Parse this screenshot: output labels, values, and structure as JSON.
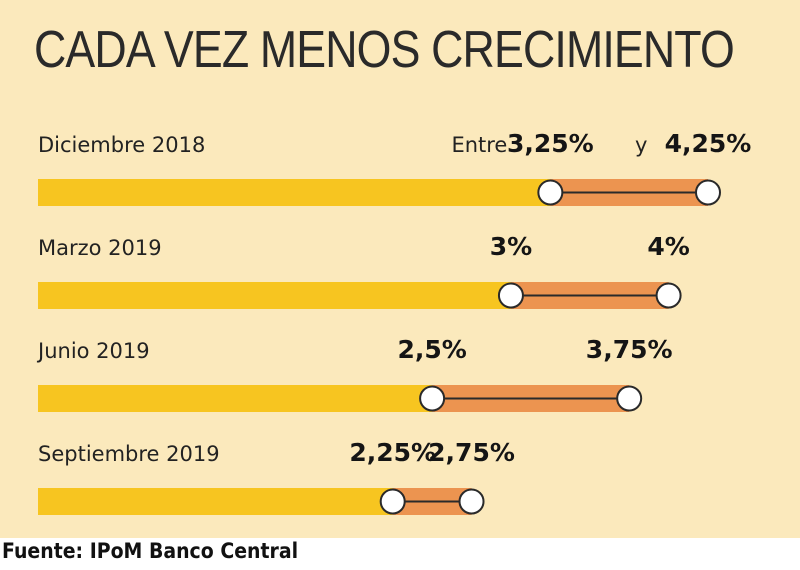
{
  "title": "CADA VEZ MENOS CRECIMIENTO",
  "source": "Fuente: IPoM Banco Central",
  "colors": {
    "background": "#fbe9bc",
    "base_bar": "#f7c520",
    "range_bar": "#ec9450",
    "marker": "#ffffff",
    "text": "#222222"
  },
  "chart_data": {
    "type": "bar",
    "categories": [
      "Diciembre 2018",
      "Marzo 2019",
      "Junio 2019",
      "Septiembre 2019"
    ],
    "series": [
      {
        "values": [
          3.25,
          3.0,
          2.5,
          2.25
        ]
      },
      {
        "values": [
          4.25,
          4.0,
          3.75,
          2.75
        ]
      }
    ],
    "low_labels": [
      "3,25%",
      "3%",
      "2,5%",
      "2,25%"
    ],
    "high_labels": [
      "4,25%",
      "4%",
      "3,75%",
      "2,75%"
    ],
    "prefix_labels": [
      "Entre",
      "",
      "",
      ""
    ],
    "connector_labels": [
      "y",
      "",
      "",
      ""
    ],
    "title": "CADA VEZ MENOS CRECIMIENTO",
    "xlabel": "",
    "ylabel": "",
    "xlim": [
      0,
      4.25
    ],
    "orientation": "horizontal"
  }
}
